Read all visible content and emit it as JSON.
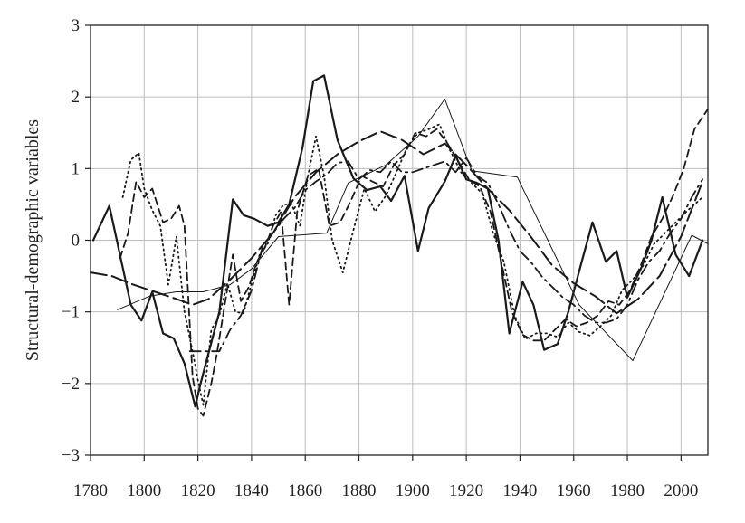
{
  "chart_data": {
    "type": "line",
    "title": "",
    "xlabel": "",
    "ylabel": "Structural-demographic variables",
    "xlim": [
      1780,
      2010
    ],
    "ylim": [
      -3,
      3
    ],
    "x_ticks": [
      1780,
      1800,
      1820,
      1840,
      1860,
      1880,
      1900,
      1920,
      1940,
      1960,
      1980,
      2000
    ],
    "y_ticks": [
      3,
      2,
      1,
      0,
      -1,
      -2,
      -3
    ],
    "y_tick_labels": [
      "3",
      "2",
      "1",
      "0",
      "−1",
      "−2",
      "−3"
    ],
    "grid": true,
    "series": [
      {
        "style": "thick-solid",
        "x": [
          1781,
          1787,
          1795,
          1799,
          1803,
          1807,
          1811,
          1815,
          1819,
          1821,
          1828,
          1833,
          1837,
          1841,
          1846,
          1850,
          1854,
          1859,
          1863,
          1867,
          1872,
          1878,
          1883,
          1888,
          1892,
          1897,
          1902,
          1906,
          1912,
          1916,
          1920,
          1924,
          1928,
          1932,
          1936,
          1941,
          1945,
          1949,
          1954,
          1958,
          1963,
          1967,
          1972,
          1976,
          1980,
          1985,
          1989,
          1993,
          1998,
          2003,
          2008
        ],
        "y": [
          0.0,
          0.48,
          -0.9,
          -1.12,
          -0.72,
          -1.3,
          -1.37,
          -1.72,
          -2.32,
          -2.0,
          -1.0,
          0.57,
          0.35,
          0.3,
          0.2,
          0.25,
          0.5,
          1.3,
          2.22,
          2.3,
          1.4,
          0.86,
          0.7,
          0.75,
          0.55,
          0.9,
          -0.15,
          0.45,
          0.82,
          1.18,
          0.85,
          0.8,
          0.72,
          0.0,
          -1.3,
          -0.58,
          -0.9,
          -1.53,
          -1.45,
          -1.0,
          -0.3,
          0.25,
          -0.3,
          -0.15,
          -0.8,
          -0.4,
          0.0,
          0.6,
          -0.2,
          -0.5,
          0.0
        ]
      },
      {
        "style": "long-dash",
        "x": [
          1780,
          1788,
          1796,
          1804,
          1812,
          1818,
          1824,
          1832,
          1840,
          1848,
          1856,
          1864,
          1872,
          1880,
          1888,
          1896,
          1904,
          1912,
          1920,
          1928,
          1936,
          1944,
          1952,
          1960,
          1968,
          1976,
          1984,
          1992,
          2000,
          2008
        ],
        "y": [
          -0.45,
          -0.5,
          -0.62,
          -0.72,
          -0.82,
          -0.9,
          -0.82,
          -0.55,
          -0.25,
          0.1,
          0.6,
          0.95,
          1.2,
          1.38,
          1.52,
          1.4,
          1.2,
          1.35,
          1.05,
          0.72,
          0.42,
          0.05,
          -0.35,
          -0.6,
          -0.78,
          -1.02,
          -0.82,
          -0.5,
          0.05,
          0.82
        ]
      },
      {
        "style": "short-dash",
        "x": [
          1791,
          1794,
          1797,
          1800,
          1803,
          1807,
          1810,
          1813,
          1815,
          1818,
          1820,
          1822,
          1825,
          1827,
          1830,
          1833,
          1836,
          1839,
          1842,
          1845,
          1848,
          1851,
          1854,
          1857,
          1861,
          1865,
          1869,
          1873,
          1877,
          1881,
          1885,
          1889,
          1893,
          1897,
          1901,
          1905,
          1909,
          1913,
          1917,
          1921,
          1925,
          1929,
          1933,
          1937,
          1941,
          1945,
          1949,
          1953,
          1957,
          1961,
          1965,
          1969,
          1973,
          1977,
          1981,
          1985,
          1989,
          1993,
          1997,
          2001,
          2005,
          2010
        ],
        "y": [
          -0.25,
          0.1,
          0.82,
          0.6,
          0.72,
          0.25,
          0.3,
          0.48,
          0.2,
          -1.9,
          -2.35,
          -2.45,
          -2.0,
          -1.6,
          -0.9,
          -0.2,
          -0.85,
          -0.65,
          -0.3,
          -0.1,
          0.2,
          0.4,
          -0.9,
          0.4,
          0.9,
          1.0,
          0.2,
          0.25,
          0.55,
          0.9,
          0.82,
          0.75,
          1.05,
          1.2,
          1.5,
          1.45,
          1.55,
          1.35,
          1.1,
          0.85,
          0.75,
          0.4,
          -0.3,
          -1.0,
          -1.32,
          -1.4,
          -1.4,
          -1.25,
          -1.1,
          -1.2,
          -1.15,
          -1.05,
          -0.85,
          -0.9,
          -0.7,
          -0.35,
          0.05,
          0.3,
          0.62,
          1.0,
          1.55,
          1.83
        ]
      },
      {
        "style": "dotted",
        "x": [
          1792,
          1795,
          1798,
          1800,
          1803,
          1806,
          1809,
          1812,
          1815,
          1818,
          1820,
          1822,
          1825,
          1828,
          1831,
          1834,
          1837,
          1840,
          1843,
          1846,
          1849,
          1852,
          1855,
          1858,
          1861,
          1864,
          1867,
          1870,
          1874,
          1878,
          1882,
          1886,
          1890,
          1894,
          1898,
          1902,
          1906,
          1910,
          1914,
          1918,
          1922,
          1926,
          1930,
          1934,
          1938,
          1942,
          1946,
          1950,
          1954,
          1958,
          1962,
          1966,
          1970,
          1974,
          1978,
          1982,
          1986,
          1990,
          1994,
          1998,
          2002,
          2008
        ],
        "y": [
          0.6,
          1.12,
          1.22,
          0.72,
          0.42,
          0.2,
          -0.62,
          0.05,
          -1.0,
          -1.55,
          -1.95,
          -2.3,
          -1.25,
          -1.05,
          -0.6,
          -1.0,
          -1.02,
          -0.6,
          -0.2,
          -0.05,
          0.35,
          0.5,
          0.5,
          0.2,
          0.9,
          1.45,
          0.9,
          0.0,
          -0.45,
          0.15,
          0.72,
          0.4,
          0.62,
          0.95,
          1.3,
          1.5,
          1.55,
          1.62,
          1.25,
          0.95,
          0.8,
          0.65,
          0.1,
          -0.3,
          -1.05,
          -1.38,
          -1.3,
          -1.3,
          -1.35,
          -1.15,
          -1.28,
          -1.33,
          -1.2,
          -1.05,
          -0.7,
          -0.55,
          -0.35,
          -0.05,
          0.1,
          0.25,
          0.4,
          0.6
        ]
      },
      {
        "style": "dash-dot",
        "x": [
          1817,
          1820,
          1824,
          1828,
          1832,
          1836,
          1840,
          1844,
          1848,
          1852,
          1856,
          1860,
          1864,
          1868,
          1872,
          1876,
          1880,
          1884,
          1888,
          1892,
          1896,
          1900,
          1904,
          1908,
          1912,
          1916,
          1920,
          1924,
          1928,
          1932,
          1936,
          1940,
          1944,
          1948,
          1952,
          1956,
          1960,
          1964,
          1968,
          1972,
          1976,
          1980,
          1984,
          1988,
          1992,
          1996,
          2000,
          2004,
          2008
        ],
        "y": [
          -1.55,
          -1.55,
          -1.55,
          -1.55,
          -1.25,
          -1.05,
          -0.7,
          -0.1,
          0.1,
          0.3,
          0.45,
          0.7,
          0.82,
          0.92,
          1.08,
          1.1,
          0.85,
          0.98,
          0.95,
          1.1,
          0.95,
          0.95,
          1.0,
          1.05,
          1.1,
          0.95,
          1.15,
          0.9,
          0.8,
          0.5,
          0.15,
          -0.15,
          -0.3,
          -0.5,
          -0.65,
          -0.8,
          -0.9,
          -1.05,
          -1.15,
          -1.15,
          -1.1,
          -0.9,
          -0.55,
          -0.3,
          -0.15,
          0.1,
          0.3,
          0.6,
          0.85
        ]
      },
      {
        "style": "thin-solid",
        "x": [
          1790,
          1802,
          1812,
          1822,
          1832,
          1840,
          1850,
          1868,
          1876,
          1890,
          1902,
          1912,
          1922,
          1939,
          1962,
          1982,
          2004,
          2010
        ],
        "y": [
          -0.97,
          -0.78,
          -0.72,
          -0.72,
          -0.62,
          -0.4,
          0.05,
          0.1,
          0.8,
          1.05,
          1.45,
          1.97,
          0.97,
          0.88,
          -0.9,
          -1.68,
          0.07,
          -0.05
        ]
      }
    ]
  }
}
